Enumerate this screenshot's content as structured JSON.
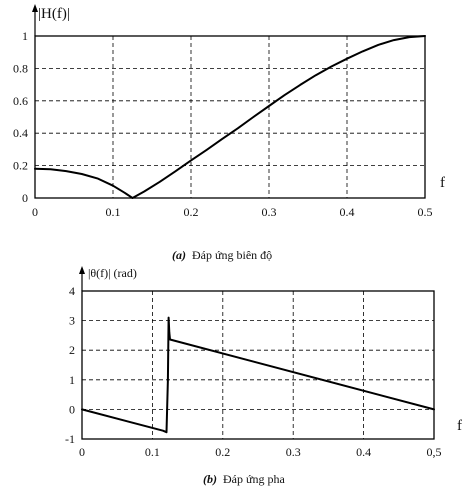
{
  "chart_data": [
    {
      "type": "line",
      "ylabel": "|H(f)|",
      "xlabel": "f",
      "caption_prefix": "(a)",
      "caption_text": "Đáp ứng biên độ",
      "xlim": [
        0,
        0.5
      ],
      "ylim": [
        0,
        1
      ],
      "x_ticks": [
        "0",
        "0.1",
        "0.2",
        "0.3",
        "0.4",
        "0.5"
      ],
      "y_ticks": [
        "0",
        "0.2",
        "0.4",
        "0.6",
        "0.8",
        "1"
      ],
      "grid": true,
      "series": [
        {
          "x": [
            0,
            0.02,
            0.04,
            0.06,
            0.08,
            0.1,
            0.115,
            0.125,
            0.14,
            0.16,
            0.18,
            0.2,
            0.22,
            0.24,
            0.26,
            0.28,
            0.3,
            0.32,
            0.34,
            0.36,
            0.38,
            0.4,
            0.42,
            0.44,
            0.46,
            0.48,
            0.5
          ],
          "y": [
            0.18,
            0.177,
            0.166,
            0.148,
            0.121,
            0.076,
            0.032,
            0.0,
            0.04,
            0.1,
            0.165,
            0.232,
            0.297,
            0.365,
            0.43,
            0.5,
            0.568,
            0.635,
            0.698,
            0.758,
            0.812,
            0.86,
            0.905,
            0.945,
            0.975,
            0.993,
            1.0
          ]
        }
      ]
    },
    {
      "type": "line",
      "ylabel": "|θ(f)| (rad)",
      "xlabel": "f",
      "caption_prefix": "(b)",
      "caption_text": "Đáp ứng pha",
      "xlim": [
        0,
        0.5
      ],
      "ylim": [
        -1,
        4
      ],
      "x_ticks": [
        "0",
        "0.1",
        "0.2",
        "0.3",
        "0.4",
        "0,5"
      ],
      "y_ticks": [
        "-1",
        "0",
        "1",
        "2",
        "3",
        "4"
      ],
      "grid": true,
      "series": [
        {
          "x": [
            0,
            0.115,
            0.12,
            0.122,
            0.123,
            0.124,
            0.125,
            0.5
          ],
          "y": [
            0.0,
            -0.72,
            -0.77,
            1.0,
            3.1,
            2.6,
            2.36,
            0.0
          ]
        }
      ]
    }
  ]
}
